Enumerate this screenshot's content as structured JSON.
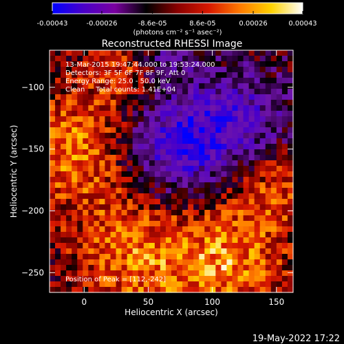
{
  "chart_data": {
    "type": "heatmap",
    "title": "Reconstructed RHESSI Image",
    "xlabel": "Heliocentric X (arcsec)",
    "ylabel": "Heliocentric Y (arcsec)",
    "xlim": [
      -27,
      163
    ],
    "ylim": [
      -266,
      -70
    ],
    "x_ticks": [
      0,
      50,
      100,
      150
    ],
    "y_ticks": [
      -100,
      -150,
      -200,
      -250
    ],
    "colorbar": {
      "range": [
        -0.00043,
        0.00043
      ],
      "ticks": [
        -0.00043,
        -0.00026,
        -8.6e-05,
        8.6e-05,
        0.00026,
        0.00043
      ],
      "tick_labels": [
        "-0.00043",
        "-0.00026",
        "-8.6e-05",
        "8.6e-05",
        "0.00026",
        "0.00043"
      ],
      "unit_label": "(photons cm⁻² s⁻¹ asec⁻²)",
      "colors": [
        "#0000ff",
        "#4a00c8",
        "#7a00a0",
        "#000000",
        "#8a0000",
        "#d81800",
        "#ff7a00",
        "#ffd200",
        "#ffffff"
      ]
    },
    "annotations": [
      "13-Mar-2015 19:47:44.000 to 19:53:24.000",
      "Detectors: 3F 5F 6F 7F 8F 9F, Att 0",
      "Energy Range: 25.0 - 50.0 keV",
      "Clean     Total counts: 1.41E+04",
      "Position of Peak = [112,-242]"
    ],
    "peak": {
      "x": 112,
      "y": -242
    },
    "grid": false,
    "legend": "none"
  },
  "footer": {
    "date": "19-May-2022 17:22"
  }
}
